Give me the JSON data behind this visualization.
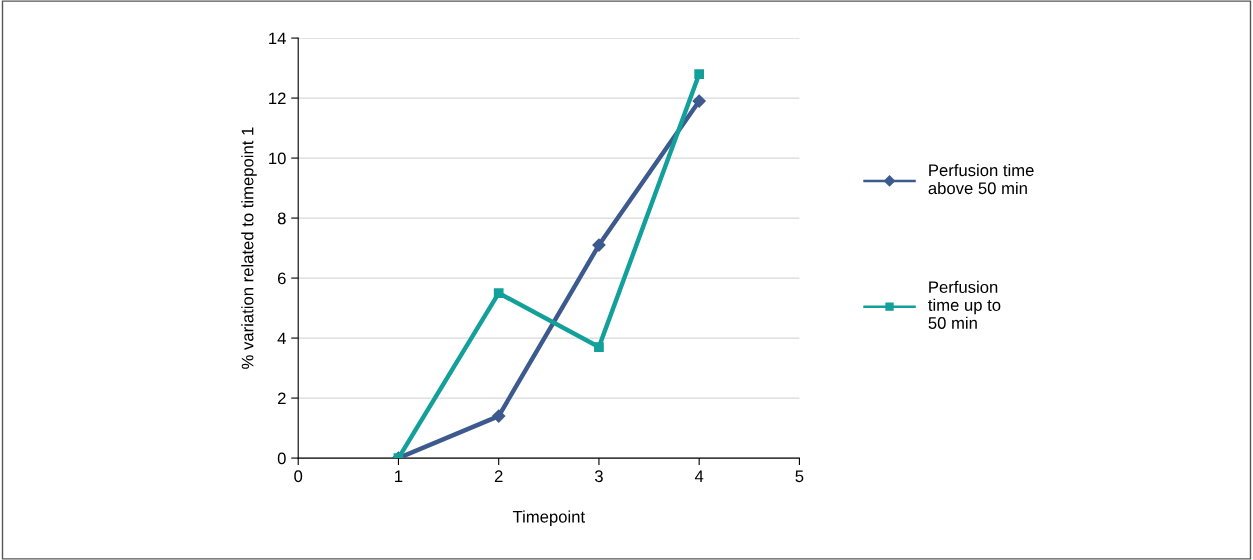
{
  "chart_data": {
    "type": "line",
    "xlabel": "Timepoint",
    "ylabel": "% variation related to timepoint 1",
    "x": [
      1,
      2,
      3,
      4
    ],
    "series": [
      {
        "name": "Perfusion time\nabove 50 min",
        "color": "#3d5a8f",
        "marker": "diamond",
        "values": [
          0,
          1.4,
          7.1,
          11.9
        ]
      },
      {
        "name": "Perfusion\ntime up to\n50 min",
        "color": "#13a09a",
        "marker": "square",
        "values": [
          0,
          5.5,
          3.7,
          12.8
        ]
      }
    ],
    "xlim": [
      0,
      5
    ],
    "xticks": [
      0,
      1,
      2,
      3,
      4,
      5
    ],
    "ylim": [
      0,
      14
    ],
    "yticks": [
      0,
      2,
      4,
      6,
      8,
      10,
      12,
      14
    ],
    "grid": "y",
    "legend": "right"
  }
}
